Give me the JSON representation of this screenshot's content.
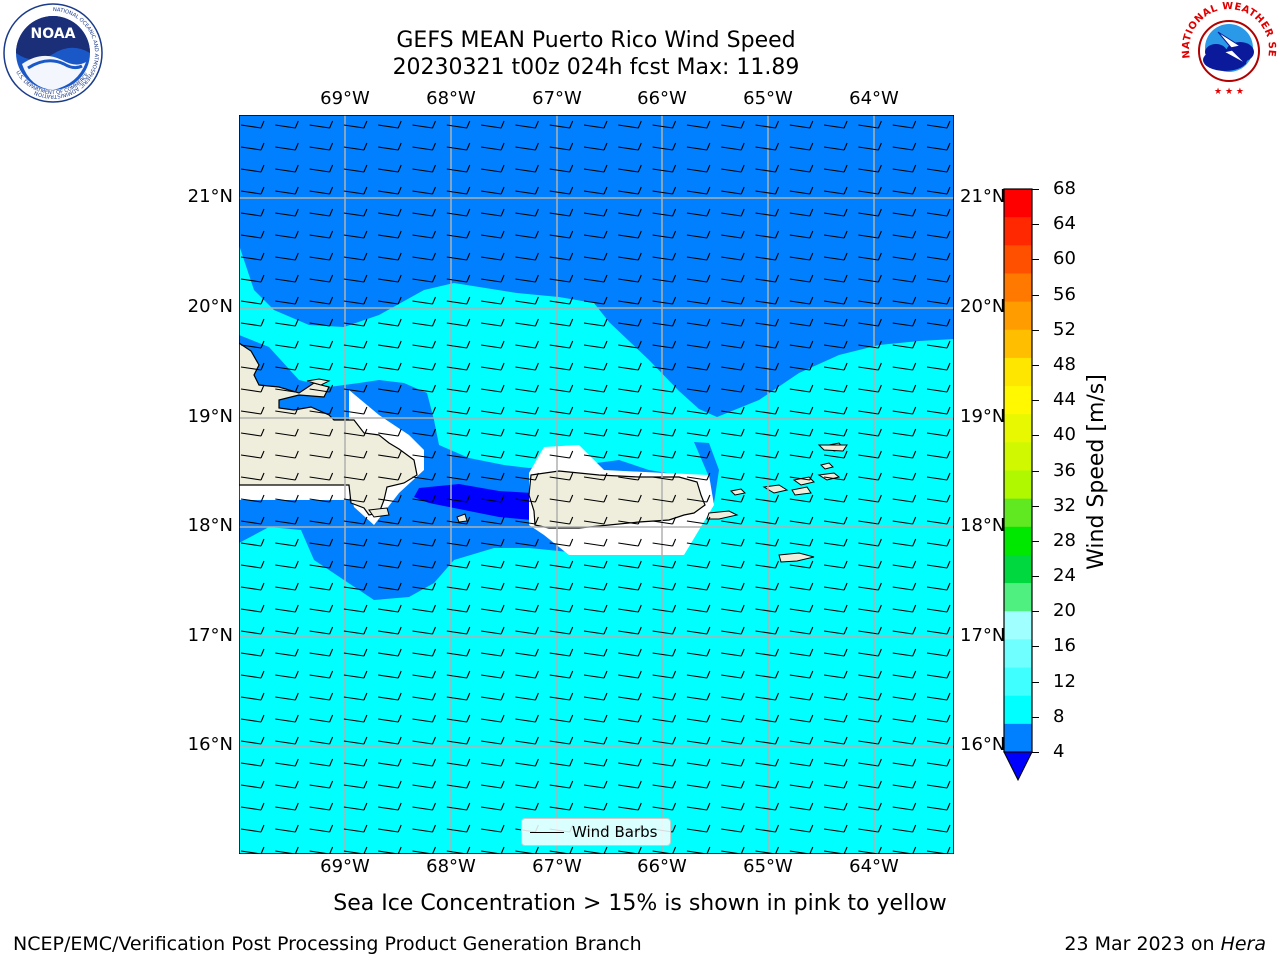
{
  "header": {
    "title_line1": "GEFS MEAN Puerto Rico Wind Speed",
    "title_line2": "20230321 t00z 024h fcst   Max: 11.89"
  },
  "logos": {
    "left": {
      "text": "NOAA",
      "ring_text": "NATIONAL OCEANIC AND ATMOSPHERIC ADMINISTRATION",
      "ring_text_bottom": "U.S. DEPARTMENT OF COMMERCE"
    },
    "right": {
      "ring_text": "NATIONAL WEATHER SERVICE"
    }
  },
  "map": {
    "lon_labels": [
      "69°W",
      "68°W",
      "67°W",
      "66°W",
      "65°W",
      "64°W"
    ],
    "lat_labels": [
      "21°N",
      "20°N",
      "19°N",
      "18°N",
      "17°N",
      "16°N"
    ],
    "colors": {
      "land": "#efeedd",
      "ocean_light": "#00ffff",
      "ocean_mid": "#0080ff",
      "ocean_dark": "#0000ff",
      "grid": "#b0b0b0"
    },
    "legend_label": "Wind Barbs"
  },
  "colorbar": {
    "label": "Wind Speed [m/s]",
    "ticks": [
      "68",
      "64",
      "60",
      "56",
      "52",
      "48",
      "44",
      "40",
      "36",
      "32",
      "28",
      "24",
      "20",
      "16",
      "12",
      "8",
      "4"
    ],
    "colors": [
      "#ff0000",
      "#ff2800",
      "#ff5000",
      "#ff7800",
      "#ff9c00",
      "#ffbe00",
      "#ffe600",
      "#fff800",
      "#e8f800",
      "#d0f800",
      "#b0f800",
      "#60e820",
      "#00e800",
      "#00d840",
      "#50f080",
      "#a0ffff",
      "#70ffff",
      "#40ffff",
      "#00ffff",
      "#0080ff"
    ],
    "extend_color": "#0000ff"
  },
  "footer": {
    "sea_ice_note": "Sea Ice Concentration > 15% is shown in pink to yellow",
    "left": "NCEP/EMC/Verification Post Processing Product Generation Branch",
    "right_date": "23 Mar 2023 on ",
    "right_host": "Hera"
  }
}
